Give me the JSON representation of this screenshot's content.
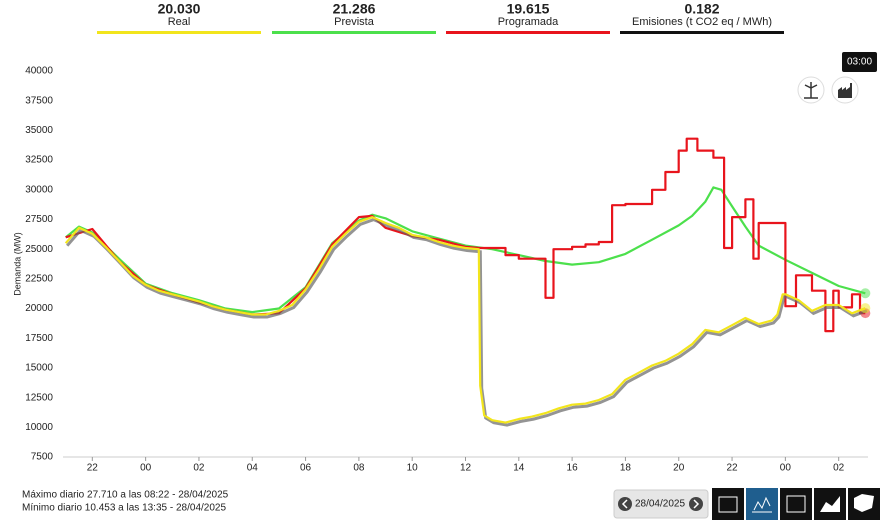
{
  "header": {
    "stats": [
      {
        "value": "20.030",
        "label": "Real"
      },
      {
        "value": "21.286",
        "label": "Prevista"
      },
      {
        "value": "19.615",
        "label": "Programada"
      },
      {
        "value": "0.182",
        "label": "Emisiones (t CO2 eq / MWh)"
      }
    ]
  },
  "tooltip": "03:00",
  "chart_data": {
    "type": "line",
    "y_label": "Demanda (MW)",
    "ylim": [
      7500,
      40000
    ],
    "yticks": [
      7500,
      10000,
      12500,
      15000,
      17500,
      20000,
      22500,
      25000,
      27500,
      30000,
      32500,
      35000,
      37500,
      40000
    ],
    "xlim": [
      -3.1,
      27.1
    ],
    "xticks": [
      {
        "value": -2,
        "label": "22"
      },
      {
        "value": 0,
        "label": "00"
      },
      {
        "value": 2,
        "label": "02"
      },
      {
        "value": 4,
        "label": "04"
      },
      {
        "value": 6,
        "label": "06"
      },
      {
        "value": 8,
        "label": "08"
      },
      10,
      12,
      14,
      16,
      18,
      20,
      22,
      {
        "value": 24,
        "label": "00"
      },
      {
        "value": 26,
        "label": "02"
      }
    ],
    "series": [
      {
        "name": "Prevista",
        "color": "#4ce04c",
        "x": [
          -3,
          -2.5,
          -2,
          -1,
          0,
          1,
          2,
          3,
          4,
          5,
          6,
          7,
          8,
          8.5,
          9,
          10,
          11,
          12,
          13,
          14,
          15,
          16,
          17,
          18,
          19,
          20,
          20.5,
          21,
          21.3,
          21.6,
          22,
          22.5,
          23,
          24,
          25,
          26,
          27
        ],
        "values": [
          26000,
          26900,
          26400,
          24200,
          22100,
          21300,
          20700,
          20000,
          19700,
          20000,
          21800,
          25500,
          27400,
          27900,
          27600,
          26500,
          25900,
          25300,
          25000,
          24500,
          24000,
          23700,
          23900,
          24600,
          25800,
          27000,
          27800,
          29000,
          30200,
          30000,
          28600,
          26900,
          25300,
          24100,
          23000,
          21900,
          21286
        ]
      },
      {
        "name": "Programada",
        "color": "#e8141c",
        "x": [
          -3,
          -2,
          -1,
          0,
          1,
          2,
          3,
          4,
          5,
          6,
          7,
          8,
          8.5,
          9,
          10,
          11,
          12,
          12.5,
          13.5,
          13.5,
          14,
          14,
          15,
          15,
          15.3,
          15.3,
          16,
          16,
          16.5,
          16.5,
          17,
          17,
          17.5,
          17.5,
          18,
          18,
          19,
          19,
          19.5,
          19.5,
          20,
          20,
          20.3,
          20.3,
          20.7,
          20.7,
          21.3,
          21.3,
          21.7,
          21.7,
          22,
          22,
          22.5,
          22.5,
          22.8,
          22.8,
          23,
          23,
          24,
          24,
          24.4,
          24.4,
          25,
          25,
          25.5,
          25.5,
          25.8,
          25.8,
          26,
          26,
          26.5,
          26.5,
          26.8,
          26.8,
          27
        ],
        "values": [
          26000,
          26700,
          24000,
          22000,
          21200,
          20500,
          19900,
          19500,
          19600,
          21700,
          25400,
          27700,
          27800,
          26800,
          26100,
          25800,
          25200,
          25100,
          25100,
          24500,
          24500,
          24200,
          24200,
          20900,
          20900,
          25000,
          25000,
          25200,
          25200,
          25400,
          25400,
          25600,
          25600,
          28700,
          28700,
          28800,
          28800,
          30000,
          30000,
          31500,
          31500,
          33300,
          33300,
          34300,
          34300,
          33300,
          33300,
          32700,
          32700,
          25100,
          25100,
          27700,
          27700,
          29200,
          29200,
          24200,
          24200,
          27200,
          27200,
          20200,
          20200,
          22800,
          22800,
          21500,
          21500,
          18100,
          18100,
          21500,
          21500,
          20100,
          20100,
          21200,
          21200,
          19615,
          19615
        ]
      },
      {
        "name": "Real",
        "color": "#f2e51c",
        "x": [
          -3,
          -2.5,
          -2,
          -1.5,
          -1,
          -0.5,
          0,
          0.5,
          1,
          1.5,
          2,
          2.5,
          3,
          3.5,
          4,
          4.5,
          5,
          5.5,
          6,
          6.5,
          7,
          7.5,
          8,
          8.5,
          9,
          9.5,
          10,
          10.5,
          11,
          11.5,
          12,
          12.5,
          12.55,
          12.7,
          13,
          13.5,
          14,
          14.5,
          15,
          15.5,
          16,
          16.5,
          17,
          17.5,
          18,
          18.5,
          19,
          19.5,
          20,
          20.5,
          21,
          21.5,
          22,
          22.5,
          23,
          23.5,
          23.7,
          23.9,
          24,
          24.5,
          25,
          25.5,
          26,
          26.5,
          27
        ],
        "values": [
          25500,
          26800,
          26300,
          25200,
          24000,
          22800,
          22000,
          21500,
          21200,
          20900,
          20600,
          20200,
          19900,
          19700,
          19500,
          19500,
          19800,
          20300,
          21600,
          23300,
          25200,
          26300,
          27300,
          27700,
          27200,
          26800,
          26200,
          26000,
          25600,
          25300,
          25100,
          25000,
          13500,
          11000,
          10600,
          10400,
          10700,
          10900,
          11200,
          11600,
          11900,
          12000,
          12300,
          12800,
          14000,
          14600,
          15200,
          15600,
          16200,
          17000,
          18200,
          18000,
          18600,
          19200,
          18700,
          19000,
          19500,
          21200,
          21200,
          20700,
          19800,
          20300,
          20300,
          19600,
          20030
        ]
      }
    ]
  },
  "footer": {
    "max": "Máximo diario 27.710 a las 08:22 - 28/04/2025",
    "min": "Mínimo diario 10.453 a las 13:35 - 28/04/2025",
    "date": "28/04/2025"
  }
}
